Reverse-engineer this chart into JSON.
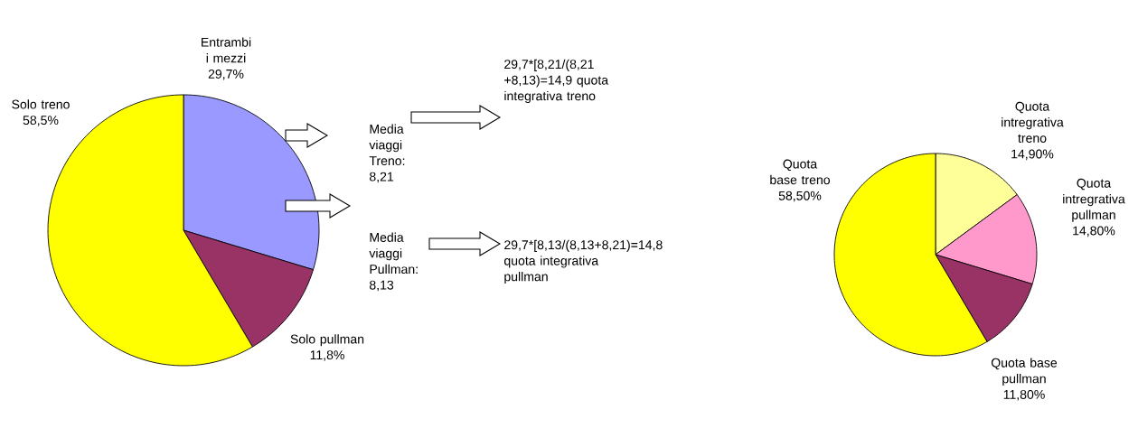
{
  "chart_data": [
    {
      "type": "pie",
      "categories": [
        "Entrambi i mezzi",
        "Solo pullman",
        "Solo treno"
      ],
      "values": [
        29.7,
        11.8,
        58.5
      ],
      "colors": [
        "#9999ff",
        "#993366",
        "#ffff00"
      ],
      "value_labels": [
        "29,7%",
        "11,8%",
        "58,5%"
      ]
    },
    {
      "type": "other",
      "annotations": [
        "Media viaggi Treno: 8,21",
        "29,7*[8,21/(8,21 +8,13)=14,9 quota integrativa treno",
        "Media viaggi Pullman: 8,13",
        "29,7*[8,13/(8,13+8,21)=14,8 quota integrativa pullman"
      ]
    },
    {
      "type": "pie",
      "categories": [
        "Quota intregrativa treno",
        "Quota intregrativa pullman",
        "Quota base pullman",
        "Quota base treno"
      ],
      "values": [
        14.9,
        14.8,
        11.8,
        58.5
      ],
      "colors": [
        "#ffff99",
        "#ff99cc",
        "#993366",
        "#ffff00"
      ],
      "value_labels": [
        "14,90%",
        "14,80%",
        "11,80%",
        "58,50%"
      ]
    }
  ]
}
